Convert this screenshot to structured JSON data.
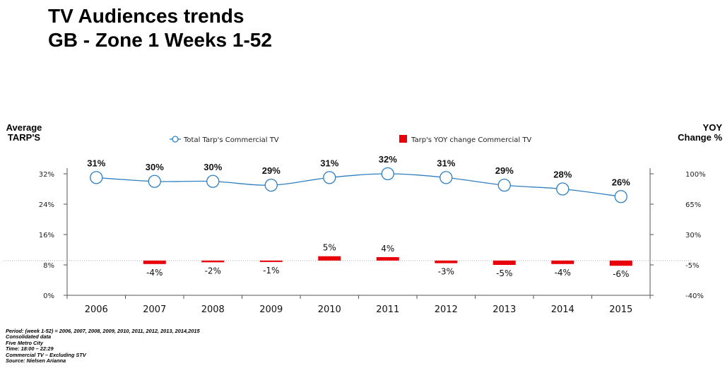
{
  "title_line1": "TV Audiences trends",
  "title_line2": "GB - Zone 1 Weeks 1-52",
  "y_left_label_1": "Average",
  "y_left_label_2": "TARP'S",
  "y_right_label_1": "YOY",
  "y_right_label_2": "Change %",
  "notes": [
    "Period: (week 1-52) = 2006, 2007, 2008, 2009, 2010, 2011, 2012, 2013, 2014,2015",
    "Consolidated data",
    "Five Metro City",
    "Time: 18:00 – 22:29",
    "Commercial TV – Excluding STV",
    "Source: Nielsen Arianna"
  ],
  "colors": {
    "line": "#2f7fc1",
    "bar": "#e8000b",
    "grid": "#aaaaaa",
    "axis": "#555555"
  },
  "chart_data": {
    "type": "line+bar",
    "categories": [
      "2006",
      "2007",
      "2008",
      "2009",
      "2010",
      "2011",
      "2012",
      "2013",
      "2014",
      "2015"
    ],
    "series": [
      {
        "name": "Total Tarp's  Commercial TV",
        "type": "line",
        "axis": "left",
        "values": [
          31,
          30,
          30,
          29,
          31,
          32,
          31,
          29,
          28,
          26
        ],
        "labels": [
          "31%",
          "30%",
          "30%",
          "29%",
          "31%",
          "32%",
          "31%",
          "29%",
          "28%",
          "26%"
        ]
      },
      {
        "name": "Tarp's YOY change Commercial TV",
        "type": "bar",
        "axis": "right",
        "values": [
          null,
          -4,
          -2,
          -1,
          5,
          4,
          -3,
          -5,
          -4,
          -6
        ],
        "labels": [
          "",
          "-4%",
          "-2%",
          "-1%",
          "5%",
          "4%",
          "-3%",
          "-5%",
          "-4%",
          "-6%"
        ]
      }
    ],
    "y_left_ticks": [
      "32%",
      "24%",
      "16%",
      "8%",
      "0%"
    ],
    "y_left_range": [
      0,
      32
    ],
    "y_right_ticks": [
      "100%",
      "65%",
      "30%",
      "-5%",
      "-40%"
    ],
    "y_right_range": [
      -40,
      100
    ],
    "legend_position": "top"
  }
}
